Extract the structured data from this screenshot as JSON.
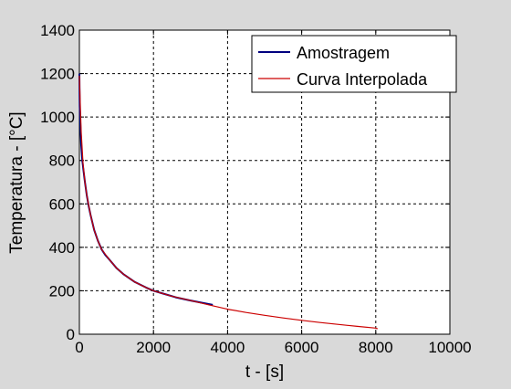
{
  "chart_data": {
    "type": "line",
    "title": "",
    "xlabel": "t - [s]",
    "ylabel": "Temperatura - [°C]",
    "xlim": [
      0,
      10000
    ],
    "ylim": [
      0,
      1400
    ],
    "x_ticks": [
      0,
      2000,
      4000,
      6000,
      8000,
      10000
    ],
    "y_ticks": [
      0,
      200,
      400,
      600,
      800,
      1000,
      1200,
      1400
    ],
    "grid": true,
    "legend_position": "top-right",
    "series": [
      {
        "name": "Amostragem",
        "color": "#00007f",
        "x": [
          0,
          10,
          30,
          50,
          80,
          120,
          150,
          200,
          250,
          300,
          400,
          500,
          600,
          700,
          800,
          1000,
          1200,
          1500,
          1800,
          2000,
          2300,
          2600,
          3000,
          3300,
          3600
        ],
        "y": [
          1200,
          1050,
          950,
          870,
          800,
          740,
          700,
          640,
          590,
          550,
          480,
          430,
          390,
          365,
          345,
          305,
          275,
          240,
          215,
          200,
          185,
          170,
          155,
          145,
          135
        ]
      },
      {
        "name": "Curva Interpolada",
        "color": "#cc0000",
        "x": [
          0,
          20,
          50,
          100,
          150,
          200,
          300,
          400,
          500,
          600,
          800,
          1000,
          1200,
          1500,
          1800,
          2000,
          2500,
          3000,
          3500,
          4000,
          4500,
          5000,
          5500,
          6000,
          6500,
          7000,
          7500,
          8000,
          8050
        ],
        "y": [
          1190,
          1080,
          930,
          780,
          700,
          640,
          550,
          480,
          430,
          390,
          345,
          305,
          275,
          240,
          215,
          200,
          175,
          155,
          135,
          115,
          100,
          87,
          75,
          64,
          54,
          45,
          36,
          28,
          25
        ]
      }
    ]
  }
}
